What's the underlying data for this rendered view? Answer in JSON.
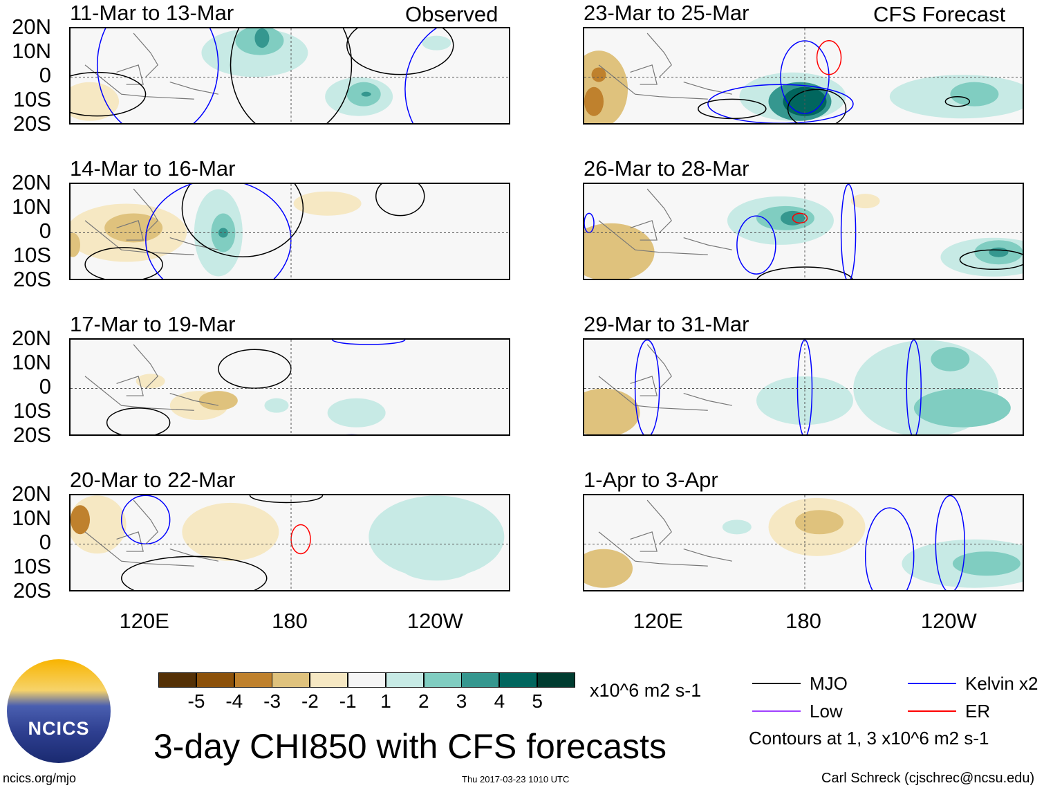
{
  "figure": {
    "title": "3-day CHI850 with CFS forecasts",
    "units": "x10^6 m2 s-1",
    "website": "ncics.org/mjo",
    "timestamp": "Thu 2017-03-23 1010 UTC",
    "author": "Carl Schreck (cjschrec@ncsu.edu)",
    "logo_text": "NCICS",
    "observed_label": "Observed",
    "forecast_label": "CFS Forecast"
  },
  "axes": {
    "lat_labels": [
      "20N",
      "10N",
      "0",
      "10S",
      "20S"
    ],
    "lon_labels": [
      "120E",
      "180",
      "120W"
    ]
  },
  "colorbar": {
    "labels": [
      "-5",
      "-4",
      "-3",
      "-2",
      "-1",
      "1",
      "2",
      "3",
      "4",
      "5"
    ],
    "colors": [
      "#543005",
      "#8c510a",
      "#bf812d",
      "#dfc27d",
      "#f6e8c3",
      "#f5f5f5",
      "#c7eae5",
      "#80cdc1",
      "#35978f",
      "#01665e",
      "#003c30"
    ]
  },
  "legend": {
    "items": [
      {
        "label": "MJO",
        "color": "#000000"
      },
      {
        "label": "Kelvin x2",
        "color": "#0000ff"
      },
      {
        "label": "Low",
        "color": "#a040ff"
      },
      {
        "label": "ER",
        "color": "#ff0000"
      }
    ],
    "note": "Contours at 1, 3 x10^6 m2 s-1"
  },
  "chart_data": {
    "type": "heatmap",
    "lon_range": [
      89,
      271
    ],
    "lat_range": [
      -20,
      20
    ],
    "panels": [
      {
        "title": "11-Mar to 13-Mar",
        "blobs": [
          [
            165,
            10,
            22,
            10,
            1
          ],
          [
            167,
            15,
            10,
            6,
            2
          ],
          [
            168,
            16,
            3,
            4,
            3
          ],
          [
            208,
            -8,
            14,
            8,
            1
          ],
          [
            210,
            -7,
            7,
            5,
            2
          ],
          [
            211,
            -7,
            2,
            1,
            3
          ],
          [
            97,
            -10,
            12,
            8,
            -1
          ],
          [
            240,
            14,
            6,
            3,
            1
          ]
        ],
        "contours": [
          [
            225,
            13,
            22,
            12,
            "mjo"
          ],
          [
            100,
            -7,
            20,
            9,
            "mjo"
          ],
          [
            180,
            5,
            25,
            30,
            "mjo"
          ],
          [
            125,
            5,
            25,
            30,
            "kelvin"
          ],
          [
            255,
            -5,
            28,
            30,
            "kelvin"
          ]
        ]
      },
      {
        "title": "14-Mar to 16-Mar",
        "blobs": [
          [
            112,
            0,
            25,
            12,
            -1
          ],
          [
            115,
            2,
            12,
            6,
            -2
          ],
          [
            150,
            0,
            10,
            18,
            1
          ],
          [
            152,
            0,
            5,
            8,
            2
          ],
          [
            152,
            0,
            2,
            2,
            3
          ],
          [
            195,
            12,
            14,
            5,
            -1
          ],
          [
            90,
            -5,
            3,
            5,
            -2
          ]
        ],
        "contours": [
          [
            111,
            -13,
            16,
            7,
            "mjo"
          ],
          [
            160,
            10,
            25,
            20,
            "mjo"
          ],
          [
            225,
            15,
            10,
            8,
            "mjo"
          ],
          [
            150,
            -3,
            30,
            25,
            "kelvin"
          ]
        ]
      },
      {
        "title": "17-Mar to 19-Mar",
        "blobs": [
          [
            142,
            -7,
            12,
            6,
            -1
          ],
          [
            150,
            -5,
            8,
            4,
            -2
          ],
          [
            122,
            3,
            6,
            3,
            -1
          ],
          [
            207,
            -10,
            12,
            6,
            1
          ],
          [
            174,
            -7,
            5,
            3,
            1
          ]
        ],
        "contours": [
          [
            117,
            -14,
            13,
            6,
            "mjo"
          ],
          [
            165,
            8,
            15,
            8,
            "mjo"
          ],
          [
            212,
            20,
            15,
            2,
            "kelvin"
          ],
          [
            205,
            -21,
            10,
            2,
            "kelvin"
          ]
        ]
      },
      {
        "title": "20-Mar to 22-Mar",
        "blobs": [
          [
            100,
            8,
            12,
            12,
            -1
          ],
          [
            93,
            10,
            4,
            6,
            -3
          ],
          [
            155,
            5,
            20,
            12,
            -1
          ],
          [
            240,
            3,
            28,
            17,
            1
          ],
          [
            240,
            -9,
            15,
            6,
            1
          ]
        ],
        "contours": [
          [
            140,
            -14,
            30,
            9,
            "mjo"
          ],
          [
            178,
            20,
            15,
            3,
            "mjo"
          ],
          [
            120,
            10,
            10,
            10,
            "kelvin"
          ],
          [
            184,
            2,
            4,
            6,
            "er"
          ]
        ]
      },
      {
        "title": "23-Mar to 25-Mar",
        "blobs": [
          [
            95,
            -5,
            12,
            16,
            -2
          ],
          [
            93,
            -10,
            4,
            6,
            -3
          ],
          [
            95,
            1,
            3,
            3,
            -3
          ],
          [
            175,
            -8,
            22,
            10,
            1
          ],
          [
            178,
            -10,
            13,
            8,
            3
          ],
          [
            180,
            -10,
            9,
            6,
            4
          ],
          [
            245,
            -8,
            30,
            9,
            1
          ],
          [
            250,
            -7,
            10,
            5,
            2
          ]
        ],
        "contours": [
          [
            180,
            0,
            10,
            15,
            "kelvin"
          ],
          [
            170,
            -11,
            30,
            8,
            "kelvin"
          ],
          [
            150,
            -13,
            14,
            4,
            "mjo"
          ],
          [
            185,
            -13,
            12,
            8,
            "mjo"
          ],
          [
            243,
            -10,
            5,
            2,
            "mjo"
          ],
          [
            190,
            8,
            5,
            7,
            "er"
          ]
        ]
      },
      {
        "title": "26-Mar to 28-Mar",
        "blobs": [
          [
            100,
            -8,
            18,
            12,
            -2
          ],
          [
            170,
            5,
            22,
            10,
            1
          ],
          [
            172,
            6,
            12,
            5,
            2
          ],
          [
            175,
            6,
            5,
            3,
            3
          ],
          [
            258,
            -10,
            22,
            8,
            1
          ],
          [
            260,
            -8,
            10,
            5,
            2
          ],
          [
            260,
            -8,
            4,
            2,
            3
          ],
          [
            205,
            13,
            6,
            3,
            -1
          ]
        ],
        "contours": [
          [
            258,
            -11,
            14,
            4,
            "mjo"
          ],
          [
            180,
            -20,
            20,
            6,
            "mjo"
          ],
          [
            198,
            0,
            3,
            20,
            "kelvin"
          ],
          [
            160,
            -5,
            8,
            12,
            "kelvin"
          ],
          [
            91,
            4,
            2,
            4,
            "kelvin"
          ],
          [
            178,
            6,
            3,
            2,
            "er"
          ]
        ]
      },
      {
        "title": "29-Mar to 31-Mar",
        "blobs": [
          [
            97,
            -10,
            15,
            10,
            -2
          ],
          [
            180,
            -5,
            20,
            10,
            1
          ],
          [
            230,
            0,
            30,
            20,
            1
          ],
          [
            240,
            12,
            8,
            5,
            2
          ],
          [
            245,
            -8,
            20,
            8,
            2
          ]
        ],
        "contours": [
          [
            180,
            0,
            3,
            20,
            "kelvin"
          ],
          [
            115,
            0,
            5,
            20,
            "kelvin"
          ],
          [
            225,
            0,
            3,
            20,
            "kelvin"
          ]
        ]
      },
      {
        "title": "1-Apr to 3-Apr",
        "blobs": [
          [
            185,
            7,
            20,
            12,
            -1
          ],
          [
            186,
            9,
            10,
            5,
            -2
          ],
          [
            97,
            -10,
            12,
            8,
            -2
          ],
          [
            250,
            -8,
            30,
            10,
            1
          ],
          [
            255,
            -8,
            14,
            5,
            2
          ],
          [
            152,
            7,
            6,
            3,
            1
          ]
        ],
        "contours": [
          [
            215,
            -5,
            10,
            20,
            "kelvin"
          ],
          [
            240,
            0,
            6,
            20,
            "kelvin"
          ]
        ]
      }
    ]
  }
}
